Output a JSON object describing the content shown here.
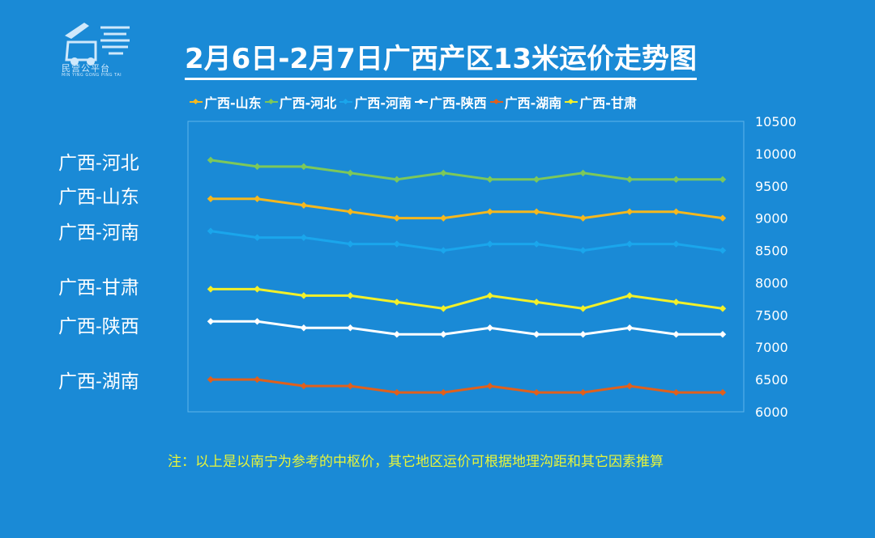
{
  "logo": {
    "name": "logo-truck-icon",
    "text": "民营公平台",
    "sub": "MIN YING GONG PING TAI"
  },
  "title": "2月6日-2月7日广西产区13米运价走势图",
  "note": "注：以上是以南宁为参考的中枢价，其它地区运价可根据地理沟距和其它因素推算",
  "side_labels": [
    "广西-河北",
    "广西-山东",
    "广西-河南",
    "广西-甘肃",
    "广西-陕西",
    "广西-湖南"
  ],
  "chart_data": {
    "type": "line",
    "title": "2月6日-2月7日广西产区13米运价走势图",
    "xlabel": "",
    "ylabel": "",
    "ylim": [
      6000,
      10500
    ],
    "y_ticks": [
      10500,
      10000,
      9500,
      9000,
      8500,
      8000,
      7500,
      7000,
      6500,
      6000
    ],
    "y_axis_side": "right",
    "grid": false,
    "legend_placement": "top",
    "series": [
      {
        "name": "广西-山东",
        "color": "#f5b81e",
        "values": [
          9300,
          9300,
          9200,
          9100,
          9000,
          9000,
          9100,
          9100,
          9000,
          9100,
          9100,
          9000
        ]
      },
      {
        "name": "广西-河北",
        "color": "#7dc85a",
        "values": [
          9900,
          9800,
          9800,
          9700,
          9600,
          9700,
          9600,
          9600,
          9700,
          9600,
          9600,
          9600
        ]
      },
      {
        "name": "广西-河南",
        "color": "#1aa6ec",
        "values": [
          8800,
          8700,
          8700,
          8600,
          8600,
          8500,
          8600,
          8600,
          8500,
          8600,
          8600,
          8500
        ]
      },
      {
        "name": "广西-陕西",
        "color": "#ffffff",
        "values": [
          7400,
          7400,
          7300,
          7300,
          7200,
          7200,
          7300,
          7200,
          7200,
          7300,
          7200,
          7200
        ]
      },
      {
        "name": "广西-湖南",
        "color": "#e0601c",
        "values": [
          6500,
          6500,
          6400,
          6400,
          6300,
          6300,
          6400,
          6300,
          6300,
          6400,
          6300,
          6300
        ]
      },
      {
        "name": "广西-甘肃",
        "color": "#f2f02a",
        "values": [
          7900,
          7900,
          7800,
          7800,
          7700,
          7600,
          7800,
          7700,
          7600,
          7800,
          7700,
          7600
        ]
      }
    ]
  }
}
